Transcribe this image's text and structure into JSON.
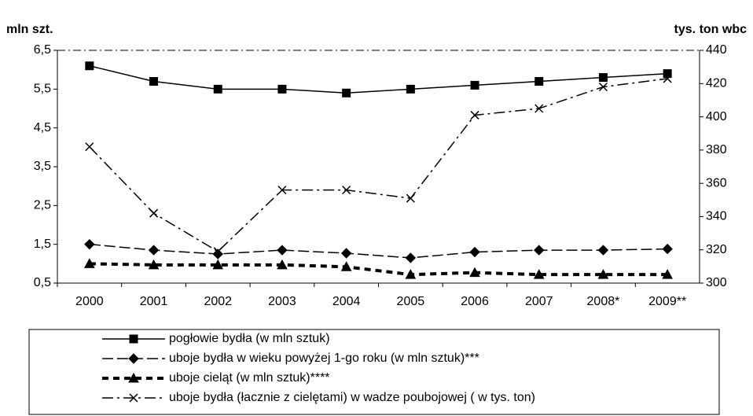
{
  "chart_data": {
    "type": "line",
    "y_label": "mln szt.",
    "y2_label": "tys. ton wbc",
    "categories": [
      "2000",
      "2001",
      "2002",
      "2003",
      "2004",
      "2005",
      "2006",
      "2007",
      "2008*",
      "2009**"
    ],
    "ylim": [
      0.5,
      6.5
    ],
    "yticks": [
      {
        "value": 0.5,
        "label": "0,5"
      },
      {
        "value": 1.5,
        "label": "1,5"
      },
      {
        "value": 2.5,
        "label": "2,5"
      },
      {
        "value": 3.5,
        "label": "3,5"
      },
      {
        "value": 4.5,
        "label": "4,5"
      },
      {
        "value": 5.5,
        "label": "5,5"
      },
      {
        "value": 6.5,
        "label": "6,5"
      }
    ],
    "y2lim": [
      300,
      440
    ],
    "y2ticks": [
      300,
      320,
      340,
      360,
      380,
      400,
      420,
      440
    ],
    "legend": "bottom",
    "series": [
      {
        "name": "pogłowie bydła (w mln sztuk)",
        "color": "#000000",
        "style": "solid",
        "marker": "square",
        "values": [
          6.1,
          5.7,
          5.5,
          5.5,
          5.4,
          5.5,
          5.6,
          5.7,
          5.8,
          5.9
        ]
      },
      {
        "name": "uboje bydła w wieku powyżej 1-go roku (w mln sztuk)***",
        "color": "#000000",
        "style": "dashed",
        "marker": "diamond",
        "values": [
          1.5,
          1.35,
          1.25,
          1.35,
          1.27,
          1.15,
          1.3,
          1.35,
          1.35,
          1.38
        ]
      },
      {
        "name": "uboje cieląt (w mln sztuk)****",
        "color": "#000000",
        "style": "thick-dashed",
        "marker": "triangle",
        "values": [
          1.0,
          0.97,
          0.97,
          0.97,
          0.92,
          0.72,
          0.77,
          0.72,
          0.72,
          0.72
        ]
      },
      {
        "name": "uboje bydła (łacznie z cielętami) w wadze poubojowej ( w tys. ton)",
        "color": "#000000",
        "style": "dash-dot",
        "marker": "x",
        "axis": "y2",
        "values": [
          382,
          342,
          319,
          356,
          356,
          351,
          401,
          405,
          418,
          423
        ]
      }
    ]
  }
}
